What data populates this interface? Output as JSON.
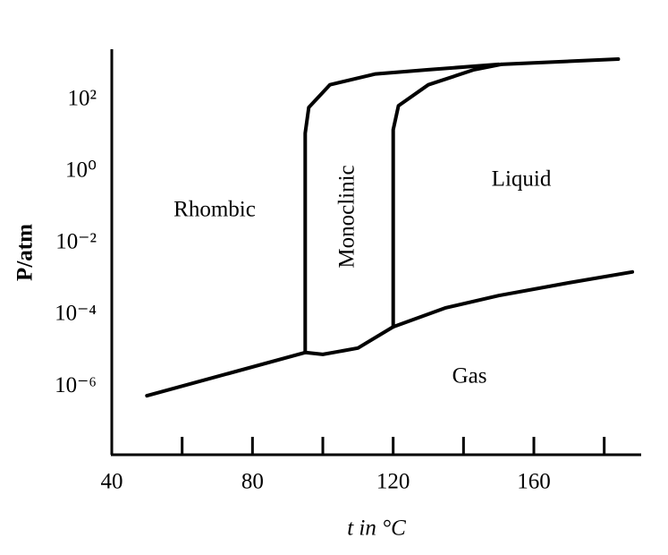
{
  "chart_data": {
    "type": "line",
    "x_label": "t in °C",
    "y_label": "P/atm",
    "log_y": true,
    "color": "#000000",
    "xlim": [
      40,
      190
    ],
    "xticks": [
      40,
      80,
      120,
      160
    ],
    "xminor_ticks": [
      60,
      100,
      140,
      180
    ],
    "ylim": [
      1.5e-08,
      2500
    ],
    "yticks": [
      {
        "value": 1e-06,
        "label": "10⁻⁶"
      },
      {
        "value": 0.0001,
        "label": "10⁻⁴"
      },
      {
        "value": 0.01,
        "label": "10⁻²"
      },
      {
        "value": 1,
        "label": "10⁰"
      },
      {
        "value": 100,
        "label": "10²"
      }
    ],
    "annotations": [
      "Rhombic",
      "Monoclinic",
      "Liquid",
      "Gas"
    ],
    "series": [
      {
        "x": [
          50,
          95
        ],
        "values": [
          5.6e-07,
          9e-06
        ]
      },
      {
        "x": [
          95,
          100,
          110,
          120
        ],
        "values": [
          9e-06,
          8e-06,
          1.2e-05,
          4.7e-05
        ]
      },
      {
        "x": [
          120,
          135,
          150,
          170,
          188
        ],
        "values": [
          4.7e-05,
          0.00016,
          0.00035,
          0.0008,
          0.0016
        ]
      },
      {
        "x": [
          95,
          95,
          96,
          102,
          115,
          130,
          150
        ],
        "values": [
          9e-06,
          12,
          63,
          270,
          540,
          710,
          1000
        ]
      },
      {
        "x": [
          120,
          120,
          121.5,
          130,
          143,
          150.7
        ],
        "values": [
          4.7e-05,
          15,
          70,
          270,
          710,
          1000
        ]
      },
      {
        "x": [
          150.7,
          184
        ],
        "values": [
          1000,
          1410
        ]
      }
    ]
  }
}
